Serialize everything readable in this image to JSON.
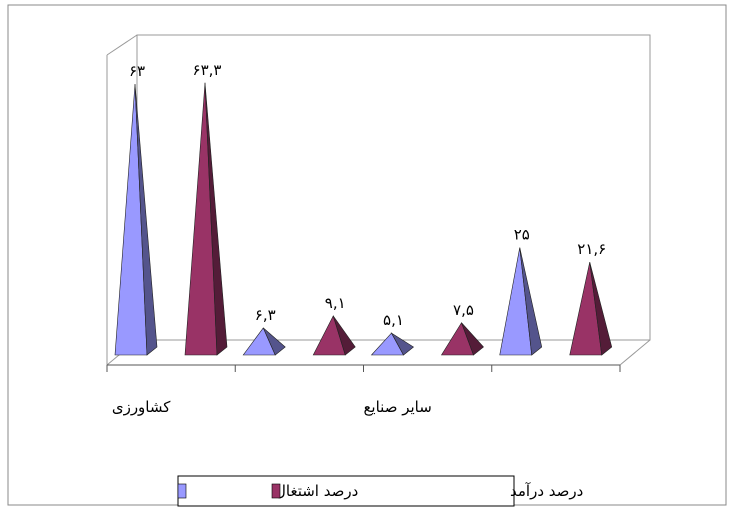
{
  "chart_data": {
    "type": "bar",
    "categories": [
      "کشاورزی",
      null,
      "سایر صنایع",
      null
    ],
    "series": [
      {
        "name": "درصد اشتغال",
        "color": "#9999ff",
        "values": [
          63,
          6.3,
          5.1,
          25
        ],
        "value_labels": [
          "۶۳",
          "۶,۳",
          "۵,۱",
          "۲۵"
        ]
      },
      {
        "name": "درصد درآمد",
        "color": "#993366",
        "values": [
          63.3,
          9.1,
          7.5,
          21.6
        ],
        "value_labels": [
          "۶۳,۳",
          "۹,۱",
          "۷,۵",
          "۲۱,۶"
        ]
      }
    ]
  }
}
